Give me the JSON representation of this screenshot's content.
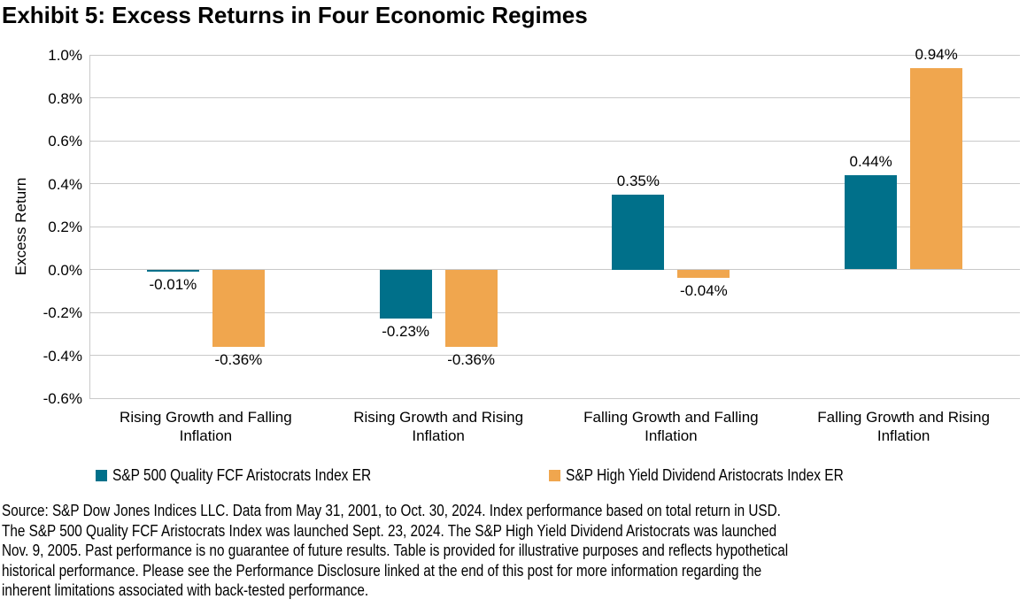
{
  "title": "Exhibit 5: Excess Returns in Four Economic Regimes",
  "chart_data": {
    "type": "bar",
    "title": "Exhibit 5: Excess Returns in Four Economic Regimes",
    "xlabel": "",
    "ylabel": "Excess Return",
    "ylim": [
      -0.6,
      1.0
    ],
    "ytick_step": 0.2,
    "ytick_format": "percent_one_decimal",
    "grid": true,
    "legend_position": "bottom",
    "categories": [
      "Rising Growth and Falling Inflation",
      "Rising Growth and Rising Inflation",
      "Falling Growth and Falling Inflation",
      "Falling Growth and Rising Inflation"
    ],
    "series": [
      {
        "name": "S&P 500 Quality FCF Aristocrats Index ER",
        "color": "#00708A",
        "values": [
          -0.01,
          -0.23,
          0.35,
          0.44
        ],
        "labels": [
          "-0.01%",
          "-0.23%",
          "0.35%",
          "0.44%"
        ]
      },
      {
        "name": "S&P High Yield Dividend Aristocrats Index ER",
        "color": "#F0A64E",
        "values": [
          -0.36,
          -0.36,
          -0.04,
          0.94
        ],
        "labels": [
          "-0.36%",
          "-0.36%",
          "-0.04%",
          "0.94%"
        ]
      }
    ]
  },
  "colors": {
    "teal": "#00708A",
    "orange": "#F0A64E",
    "gridline": "#C9C9C9",
    "text": "#000000"
  },
  "footer": {
    "lines": [
      "Source: S&P Dow Jones Indices LLC. Data from May 31, 2001, to Oct. 30, 2024. Index performance based on total return in USD.",
      "The S&P 500 Quality FCF Aristocrats Index was launched Sept. 23, 2024. The S&P High Yield Dividend Aristocrats was launched",
      "Nov. 9, 2005. Past performance is no guarantee of future results. Table is provided for illustrative purposes and reflects hypothetical",
      "historical performance. Please see the Performance Disclosure linked at the end of this post for more information regarding the",
      "inherent limitations associated with back-tested performance."
    ]
  }
}
